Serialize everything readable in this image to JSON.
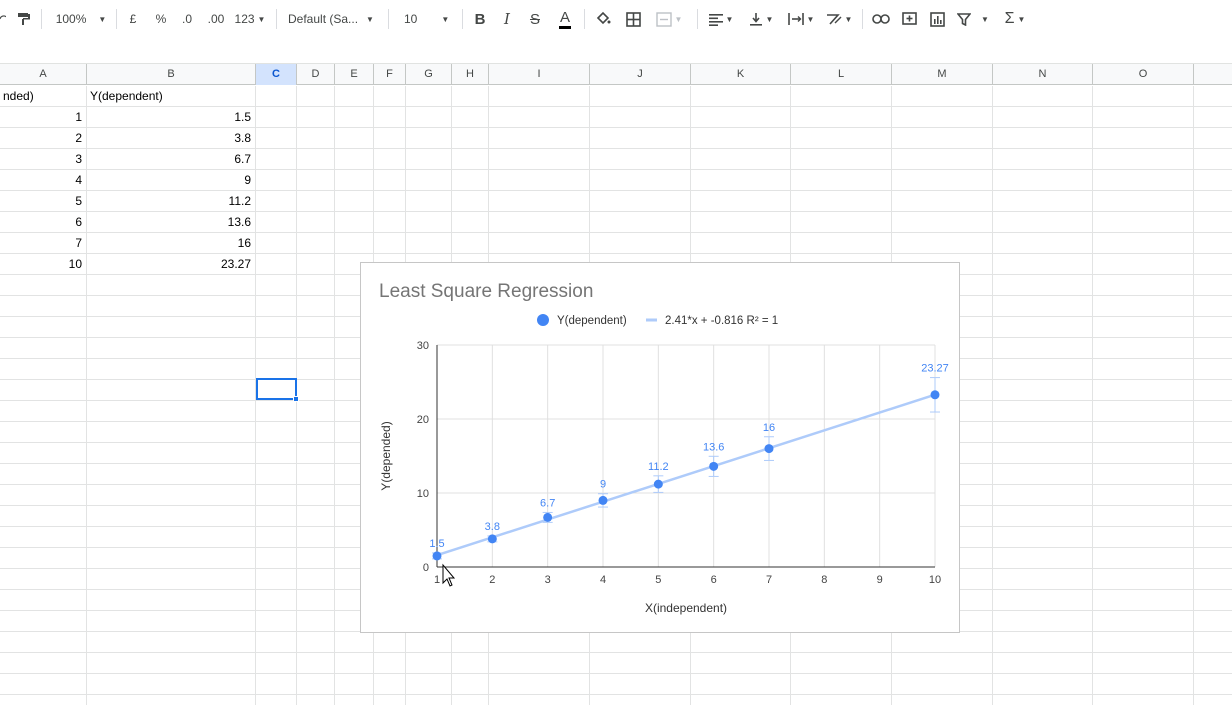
{
  "toolbar": {
    "zoom": "100%",
    "currency": "£",
    "percent": "%",
    "dec_less": ".0",
    "dec_more": ".00",
    "more_formats": "123",
    "font": "Default (Sa...",
    "font_size": "10",
    "bold": "B",
    "italic": "I",
    "strike": "S",
    "text_color": "A",
    "sum": "Σ"
  },
  "columns": [
    {
      "label": "A",
      "active": false
    },
    {
      "label": "B",
      "active": false
    },
    {
      "label": "C",
      "active": true
    },
    {
      "label": "D",
      "active": false
    },
    {
      "label": "E",
      "active": false
    },
    {
      "label": "F",
      "active": false
    },
    {
      "label": "G",
      "active": false
    },
    {
      "label": "H",
      "active": false
    },
    {
      "label": "I",
      "active": false
    },
    {
      "label": "J",
      "active": false
    },
    {
      "label": "K",
      "active": false
    },
    {
      "label": "L",
      "active": false
    },
    {
      "label": "M",
      "active": false
    },
    {
      "label": "N",
      "active": false
    },
    {
      "label": "O",
      "active": false
    }
  ],
  "sheet": {
    "header": {
      "a": "nded)",
      "b": "Y(dependent)"
    },
    "rows": [
      {
        "x": "1",
        "y": "1.5"
      },
      {
        "x": "2",
        "y": "3.8"
      },
      {
        "x": "3",
        "y": "6.7"
      },
      {
        "x": "4",
        "y": "9"
      },
      {
        "x": "5",
        "y": "11.2"
      },
      {
        "x": "6",
        "y": "13.6"
      },
      {
        "x": "7",
        "y": "16"
      },
      {
        "x": "10",
        "y": "23.27"
      }
    ]
  },
  "colors": {
    "series": "#4285f4",
    "trendline": "#aecbfa",
    "selection": "#1a73e8"
  },
  "chart_data": {
    "type": "scatter",
    "title": "Least Square Regression",
    "xlabel": "X(independent)",
    "ylabel": "Y(depended)",
    "xlim": [
      1,
      10
    ],
    "ylim": [
      0,
      30
    ],
    "xticks": [
      1,
      2,
      3,
      4,
      5,
      6,
      7,
      8,
      9,
      10
    ],
    "yticks": [
      0,
      10,
      20,
      30
    ],
    "grid": true,
    "legend": "top",
    "legend_entries": {
      "series": "Y(dependent)",
      "trendline": "2.41*x + -0.816 R² = 1"
    },
    "series": [
      {
        "name": "Y(dependent)",
        "x": [
          1,
          2,
          3,
          4,
          5,
          6,
          7,
          10
        ],
        "y": [
          1.5,
          3.8,
          6.7,
          9,
          11.2,
          13.6,
          16,
          23.27
        ],
        "labels": [
          "1.5",
          "3.8",
          "6.7",
          "9",
          "11.2",
          "13.6",
          "16",
          "23.27"
        ]
      }
    ],
    "trendline": {
      "slope": 2.41,
      "intercept": -0.816,
      "r2": 1
    }
  }
}
